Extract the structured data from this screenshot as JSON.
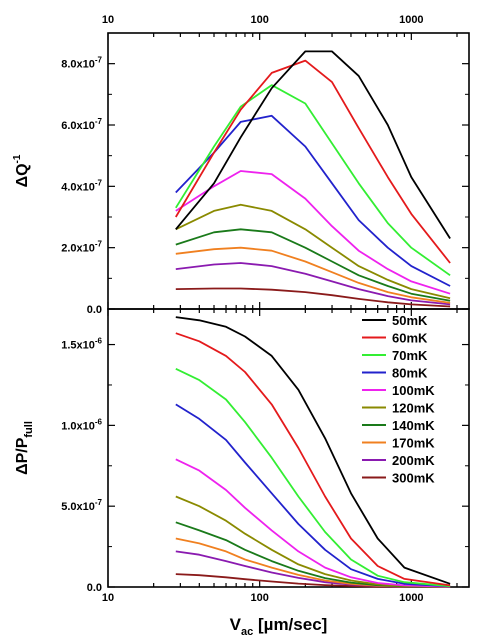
{
  "colors": {
    "50mK": "#000000",
    "60mK": "#e41a1c",
    "70mK": "#33ee33",
    "80mK": "#2222cc",
    "100mK": "#ee22ee",
    "120mK": "#8a8a00",
    "140mK": "#1a7a1a",
    "170mK": "#f08020",
    "200mK": "#8a1ab0",
    "300mK": "#8a1a1a"
  },
  "chart_data": [
    {
      "type": "line",
      "panel": "top",
      "ylabel_main": "ΔQ",
      "ylabel_sup": "-1",
      "xscale": "log",
      "xlim": [
        10,
        2400
      ],
      "ylim": [
        0,
        9e-07
      ],
      "x_tick_labels": [
        "10",
        "100",
        "1000"
      ],
      "x_tick_values": [
        10,
        100,
        1000
      ],
      "x_ticks_on_top": true,
      "y_ticks": [
        {
          "value": 0,
          "mant": "0.0",
          "exp": ""
        },
        {
          "value": 2e-07,
          "mant": "2.0x10",
          "exp": "-7"
        },
        {
          "value": 4e-07,
          "mant": "4.0x10",
          "exp": "-7"
        },
        {
          "value": 6e-07,
          "mant": "6.0x10",
          "exp": "-7"
        },
        {
          "value": 8e-07,
          "mant": "8.0x10",
          "exp": "-7"
        }
      ],
      "x": [
        28,
        50,
        75,
        120,
        200,
        300,
        450,
        700,
        1000,
        1800
      ],
      "series": [
        {
          "name": "50mK",
          "values": [
            2.6e-07,
            4.1e-07,
            5.6e-07,
            7.2e-07,
            8.4e-07,
            8.4e-07,
            7.6e-07,
            6e-07,
            4.3e-07,
            2.3e-07
          ]
        },
        {
          "name": "60mK",
          "values": [
            3e-07,
            5.1e-07,
            6.5e-07,
            7.7e-07,
            8.1e-07,
            7.4e-07,
            5.9e-07,
            4.3e-07,
            3.1e-07,
            1.5e-07
          ]
        },
        {
          "name": "70mK",
          "values": [
            3.3e-07,
            5.3e-07,
            6.6e-07,
            7.3e-07,
            6.7e-07,
            5.4e-07,
            4.1e-07,
            2.8e-07,
            2e-07,
            1.1e-07
          ]
        },
        {
          "name": "80mK",
          "values": [
            3.8e-07,
            5.1e-07,
            6.1e-07,
            6.3e-07,
            5.3e-07,
            4.1e-07,
            2.9e-07,
            2e-07,
            1.4e-07,
            7.5e-08
          ]
        },
        {
          "name": "100mK",
          "values": [
            3.2e-07,
            4e-07,
            4.5e-07,
            4.4e-07,
            3.6e-07,
            2.7e-07,
            1.9e-07,
            1.3e-07,
            9e-08,
            5e-08
          ]
        },
        {
          "name": "120mK",
          "values": [
            2.6e-07,
            3.2e-07,
            3.4e-07,
            3.2e-07,
            2.6e-07,
            2e-07,
            1.4e-07,
            9.5e-08,
            6.5e-08,
            3.5e-08
          ]
        },
        {
          "name": "140mK",
          "values": [
            2.1e-07,
            2.5e-07,
            2.6e-07,
            2.5e-07,
            2e-07,
            1.55e-07,
            1.1e-07,
            7.5e-08,
            5e-08,
            2.7e-08
          ]
        },
        {
          "name": "170mK",
          "values": [
            1.8e-07,
            1.95e-07,
            2e-07,
            1.9e-07,
            1.55e-07,
            1.2e-07,
            8.5e-08,
            5.5e-08,
            3.8e-08,
            2e-08
          ]
        },
        {
          "name": "200mK",
          "values": [
            1.3e-07,
            1.45e-07,
            1.5e-07,
            1.4e-07,
            1.15e-07,
            9e-08,
            6.5e-08,
            4.2e-08,
            2.8e-08,
            1.5e-08
          ]
        },
        {
          "name": "300mK",
          "values": [
            6.5e-08,
            6.7e-08,
            6.7e-08,
            6.3e-08,
            5.5e-08,
            4.5e-08,
            3.3e-08,
            2.2e-08,
            1.5e-08,
            8e-09
          ]
        }
      ]
    },
    {
      "type": "line",
      "panel": "bottom",
      "ylabel_main": "ΔP/P",
      "ylabel_sub": "full",
      "xlabel_main": "V",
      "xlabel_sub": "ac",
      "xlabel_rest": " [µm/sec]",
      "xscale": "log",
      "xlim": [
        10,
        2400
      ],
      "ylim": [
        0,
        1.72e-06
      ],
      "x_tick_labels": [
        "10",
        "100",
        "1000"
      ],
      "x_tick_values": [
        10,
        100,
        1000
      ],
      "y_ticks": [
        {
          "value": 0,
          "mant": "0.0",
          "exp": ""
        },
        {
          "value": 5e-07,
          "mant": "5.0x10",
          "exp": "-7"
        },
        {
          "value": 1e-06,
          "mant": "1.0x10",
          "exp": "-6"
        },
        {
          "value": 1.5e-06,
          "mant": "1.5x10",
          "exp": "-6"
        }
      ],
      "legend_position": "top-right",
      "x": [
        28,
        40,
        60,
        80,
        120,
        180,
        270,
        400,
        600,
        900,
        1800
      ],
      "series": [
        {
          "name": "50mK",
          "values": [
            1.67e-06,
            1.65e-06,
            1.61e-06,
            1.55e-06,
            1.43e-06,
            1.22e-06,
            9.2e-07,
            5.8e-07,
            3e-07,
            1.2e-07,
            2e-08
          ]
        },
        {
          "name": "60mK",
          "values": [
            1.57e-06,
            1.52e-06,
            1.43e-06,
            1.33e-06,
            1.13e-06,
            8.6e-07,
            5.6e-07,
            3e-07,
            1.3e-07,
            5e-08,
            1e-08
          ]
        },
        {
          "name": "70mK",
          "values": [
            1.35e-06,
            1.28e-06,
            1.16e-06,
            1.02e-06,
            8e-07,
            5.6e-07,
            3.4e-07,
            1.7e-07,
            7e-08,
            3e-08,
            5e-09
          ]
        },
        {
          "name": "80mK",
          "values": [
            1.13e-06,
            1.04e-06,
            9.1e-07,
            7.7e-07,
            5.8e-07,
            3.9e-07,
            2.3e-07,
            1.1e-07,
            5e-08,
            2e-08,
            4e-09
          ]
        },
        {
          "name": "100mK",
          "values": [
            7.9e-07,
            7.2e-07,
            6e-07,
            4.9e-07,
            3.5e-07,
            2.2e-07,
            1.2e-07,
            6e-08,
            2.5e-08,
            1e-08,
            2e-09
          ]
        },
        {
          "name": "120mK",
          "values": [
            5.6e-07,
            5e-07,
            4.1e-07,
            3.3e-07,
            2.3e-07,
            1.4e-07,
            8e-08,
            4e-08,
            1.6e-08,
            6e-09,
            1e-09
          ]
        },
        {
          "name": "140mK",
          "values": [
            4e-07,
            3.5e-07,
            2.9e-07,
            2.3e-07,
            1.6e-07,
            1e-07,
            5.5e-08,
            2.7e-08,
            1.1e-08,
            4e-09,
            1e-09
          ]
        },
        {
          "name": "170mK",
          "values": [
            3e-07,
            2.7e-07,
            2.2e-07,
            1.7e-07,
            1.2e-07,
            7.5e-08,
            4e-08,
            2e-08,
            8e-09,
            3e-09,
            1e-09
          ]
        },
        {
          "name": "200mK",
          "values": [
            2.2e-07,
            2e-07,
            1.6e-07,
            1.3e-07,
            9e-08,
            5.6e-08,
            3e-08,
            1.5e-08,
            6e-09,
            2e-09,
            5e-10
          ]
        },
        {
          "name": "300mK",
          "values": [
            8e-08,
            7.3e-08,
            6e-08,
            4.8e-08,
            3.4e-08,
            2.1e-08,
            1.2e-08,
            6e-09,
            2e-09,
            1e-09,
            2e-10
          ]
        }
      ]
    }
  ]
}
